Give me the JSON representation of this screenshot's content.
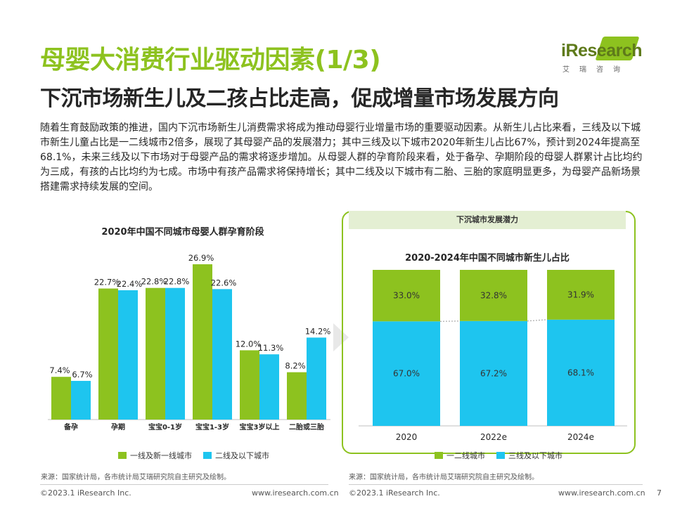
{
  "header": {
    "title": "母婴大消费行业驱动因素(1/3)",
    "subtitle": "下沉市场新生儿及二孩占比走高，促成增量市场发展方向",
    "logo_text": "iResearch",
    "logo_cn": "艾瑞咨询"
  },
  "intro": "随着生育鼓励政策的推进，国内下沉市场新生儿消费需求将成为推动母婴行业增量市场的重要驱动因素。从新生儿占比来看，三线及以下城市新生儿童占比是一二线城市2倍多，展现了其母婴产品的发展潜力；其中三线及以下城市2020年新生儿占比67%，预计到2024年提高至68.1%，未来三线及以下市场对于母婴产品的需求将逐步增加。从母婴人群的孕育阶段来看，处于备孕、孕期阶段的母婴人群累计占比均约为三成，有孩的占比均约为七成。市场中有孩产品需求将保持增长；其中二线及以下城市有二胎、三胎的家庭明显更多，为母婴产品新场景搭建需求持续发展的空间。",
  "colors": {
    "green": "#8dc21f",
    "blue": "#1ec5ef"
  },
  "right_panel_header": "下沉城市发展潜力",
  "chart_data": [
    {
      "type": "bar",
      "title": "2020年中国不同城市母婴人群孕育阶段",
      "categories": [
        "备孕",
        "孕期",
        "宝宝0-1岁",
        "宝宝1-3岁",
        "宝宝3岁以上",
        "二胎或三胎"
      ],
      "series": [
        {
          "name": "一线及新一线城市",
          "values": [
            7.4,
            22.7,
            22.8,
            26.9,
            12.0,
            8.2
          ],
          "labels": [
            "7.4%",
            "22.7%",
            "22.8%",
            "26.9%",
            "12.0%",
            "8.2%"
          ]
        },
        {
          "name": "二线及以下城市",
          "values": [
            6.7,
            22.4,
            22.8,
            22.6,
            11.3,
            14.2
          ],
          "labels": [
            "6.7%",
            "22.4%",
            "22.8%",
            "22.6%",
            "11.3%",
            "14.2%"
          ]
        }
      ],
      "unit": "%",
      "source": "来源：国家统计局，各市统计局艾瑞研究院自主研究及绘制。"
    },
    {
      "type": "bar",
      "stacked": true,
      "title": "2020-2024年中国不同城市新生儿占比",
      "categories": [
        "2020",
        "2022e",
        "2024e"
      ],
      "series": [
        {
          "name": "一二线城市",
          "values": [
            33.0,
            32.8,
            31.9
          ],
          "labels": [
            "33.0%",
            "32.8%",
            "31.9%"
          ]
        },
        {
          "name": "三线及以下城市",
          "values": [
            67.0,
            67.2,
            68.1
          ],
          "labels": [
            "67.0%",
            "67.2%",
            "68.1%"
          ]
        }
      ],
      "unit": "%",
      "source": "来源：国家统计局，各市统计局艾瑞研究院自主研究及绘制。"
    }
  ],
  "footer": {
    "copyright": "©2023.1 iResearch Inc.",
    "website": "www.iresearch.com.cn",
    "page": "7"
  }
}
